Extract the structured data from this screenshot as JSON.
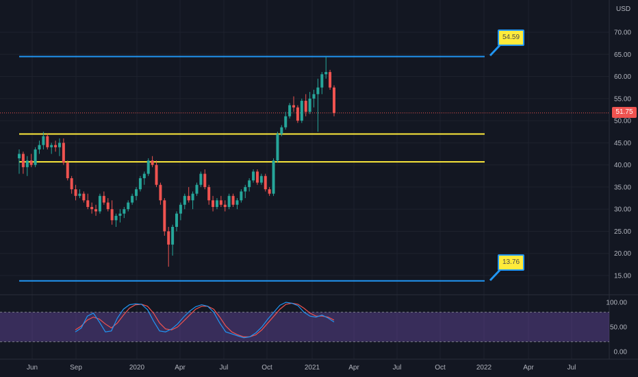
{
  "currency": "USD",
  "last_price": "51.75",
  "chart_data": [
    {
      "type": "candlestick",
      "ylim": [
        10,
        75
      ],
      "y_ticks": [
        "70.00",
        "65.00",
        "60.00",
        "55.00",
        "50.00",
        "45.00",
        "40.00",
        "35.00",
        "30.00",
        "25.00",
        "20.00",
        "15.00"
      ],
      "x_ticks": [
        "Jun",
        "Sep",
        "2020",
        "Apr",
        "Jul",
        "Oct",
        "2021",
        "Apr",
        "Jul",
        "Oct",
        "2022",
        "Apr",
        "Jul"
      ],
      "horizontal_lines": [
        {
          "value": 64.5,
          "color": "#2196f3"
        },
        {
          "value": 47.0,
          "color": "#ffeb3b"
        },
        {
          "value": 40.7,
          "color": "#ffeb3b"
        },
        {
          "value": 13.8,
          "color": "#2196f3"
        }
      ],
      "annotations": [
        "54.59",
        "13.76"
      ],
      "candles": [
        [
          41.5,
          43.5,
          38.0,
          42.5
        ],
        [
          42.5,
          43.0,
          38.0,
          39.5
        ],
        [
          39.5,
          42.0,
          37.5,
          41.0
        ],
        [
          41.0,
          42.5,
          39.5,
          40.0
        ],
        [
          40.0,
          44.0,
          39.5,
          43.5
        ],
        [
          43.5,
          45.5,
          42.5,
          44.5
        ],
        [
          44.5,
          47.5,
          43.5,
          46.5
        ],
        [
          46.5,
          47.0,
          43.5,
          44.0
        ],
        [
          44.0,
          45.0,
          42.5,
          44.5
        ],
        [
          44.5,
          45.5,
          43.0,
          44.0
        ],
        [
          44.0,
          46.0,
          42.0,
          45.0
        ],
        [
          45.0,
          46.0,
          40.0,
          40.5
        ],
        [
          40.5,
          41.0,
          36.5,
          37.0
        ],
        [
          37.0,
          37.5,
          33.5,
          34.5
        ],
        [
          34.5,
          35.5,
          32.0,
          33.0
        ],
        [
          33.0,
          34.5,
          32.5,
          33.5
        ],
        [
          33.5,
          34.0,
          31.5,
          32.0
        ],
        [
          32.0,
          33.5,
          30.0,
          30.5
        ],
        [
          30.5,
          31.5,
          29.0,
          30.0
        ],
        [
          30.0,
          31.0,
          28.5,
          29.5
        ],
        [
          29.5,
          33.5,
          29.0,
          33.0
        ],
        [
          33.0,
          34.0,
          31.0,
          31.5
        ],
        [
          31.5,
          32.5,
          29.5,
          30.0
        ],
        [
          30.0,
          32.0,
          26.5,
          27.5
        ],
        [
          27.5,
          29.0,
          26.0,
          28.5
        ],
        [
          28.5,
          30.0,
          27.0,
          29.0
        ],
        [
          29.0,
          30.5,
          28.0,
          30.0
        ],
        [
          30.0,
          32.0,
          29.5,
          31.5
        ],
        [
          31.5,
          33.5,
          31.0,
          33.0
        ],
        [
          33.0,
          35.0,
          32.0,
          34.5
        ],
        [
          34.5,
          37.5,
          34.0,
          37.0
        ],
        [
          37.0,
          38.5,
          35.5,
          38.0
        ],
        [
          38.0,
          41.5,
          37.5,
          41.0
        ],
        [
          41.0,
          42.0,
          39.5,
          40.0
        ],
        [
          40.0,
          41.0,
          35.0,
          35.5
        ],
        [
          35.5,
          36.0,
          31.0,
          32.0
        ],
        [
          32.0,
          32.5,
          24.0,
          25.0
        ],
        [
          25.0,
          26.0,
          17.0,
          22.0
        ],
        [
          22.0,
          26.5,
          19.5,
          26.0
        ],
        [
          26.0,
          29.5,
          25.0,
          29.0
        ],
        [
          29.0,
          31.5,
          27.5,
          31.0
        ],
        [
          31.0,
          33.5,
          30.0,
          33.0
        ],
        [
          33.0,
          35.0,
          31.5,
          32.0
        ],
        [
          32.0,
          34.0,
          30.0,
          33.5
        ],
        [
          33.5,
          36.0,
          33.0,
          35.5
        ],
        [
          35.5,
          38.5,
          35.0,
          38.0
        ],
        [
          38.0,
          39.0,
          34.5,
          35.0
        ],
        [
          35.0,
          35.5,
          31.0,
          32.0
        ],
        [
          32.0,
          33.0,
          29.5,
          30.5
        ],
        [
          30.5,
          32.5,
          30.0,
          32.0
        ],
        [
          32.0,
          33.0,
          30.5,
          31.0
        ],
        [
          31.0,
          32.0,
          29.5,
          30.5
        ],
        [
          30.5,
          33.5,
          30.0,
          33.0
        ],
        [
          33.0,
          33.5,
          30.5,
          31.0
        ],
        [
          31.0,
          32.5,
          30.0,
          32.0
        ],
        [
          32.0,
          34.5,
          31.5,
          34.0
        ],
        [
          34.0,
          35.5,
          32.5,
          35.0
        ],
        [
          35.0,
          37.0,
          34.0,
          36.5
        ],
        [
          36.5,
          39.0,
          36.0,
          38.5
        ],
        [
          38.5,
          39.0,
          35.5,
          36.0
        ],
        [
          36.0,
          38.0,
          35.5,
          37.5
        ],
        [
          37.5,
          38.0,
          34.0,
          34.5
        ],
        [
          34.5,
          35.0,
          33.0,
          33.5
        ],
        [
          33.5,
          41.5,
          33.0,
          41.0
        ],
        [
          41.0,
          47.5,
          40.5,
          47.0
        ],
        [
          47.0,
          49.0,
          46.5,
          48.5
        ],
        [
          48.5,
          52.0,
          48.0,
          51.0
        ],
        [
          51.0,
          54.0,
          50.5,
          53.5
        ],
        [
          53.5,
          55.5,
          52.0,
          53.0
        ],
        [
          53.0,
          53.5,
          49.5,
          50.0
        ],
        [
          50.0,
          55.0,
          49.5,
          54.5
        ],
        [
          54.5,
          56.0,
          51.0,
          52.0
        ],
        [
          52.0,
          56.5,
          51.5,
          55.0
        ],
        [
          55.0,
          57.0,
          53.0,
          56.0
        ],
        [
          56.0,
          59.5,
          47.5,
          57.5
        ],
        [
          57.5,
          61.0,
          56.0,
          60.5
        ],
        [
          60.5,
          64.5,
          59.5,
          61.0
        ],
        [
          61.0,
          61.5,
          57.0,
          57.5
        ],
        [
          57.5,
          58.0,
          51.0,
          51.75
        ]
      ],
      "oscillator": {
        "ylim": [
          0,
          100
        ],
        "ticks": [
          "100.00",
          "50.00",
          "0.00"
        ],
        "band": [
          20,
          80
        ],
        "k": [
          40,
          48,
          72,
          78,
          60,
          40,
          42,
          68,
          86,
          95,
          97,
          96,
          85,
          62,
          42,
          40,
          46,
          56,
          70,
          82,
          91,
          95,
          92,
          80,
          58,
          40,
          36,
          32,
          28,
          30,
          38,
          50,
          66,
          80,
          94,
          100,
          98,
          93,
          80,
          72,
          70,
          74,
          68,
          60
        ],
        "d": [
          44,
          52,
          64,
          70,
          66,
          56,
          48,
          58,
          74,
          88,
          95,
          96,
          92,
          78,
          58,
          46,
          44,
          50,
          62,
          74,
          86,
          92,
          92,
          86,
          70,
          52,
          40,
          34,
          30,
          30,
          34,
          44,
          58,
          72,
          86,
          96,
          98,
          96,
          88,
          78,
          72,
          72,
          70,
          64
        ]
      }
    }
  ]
}
